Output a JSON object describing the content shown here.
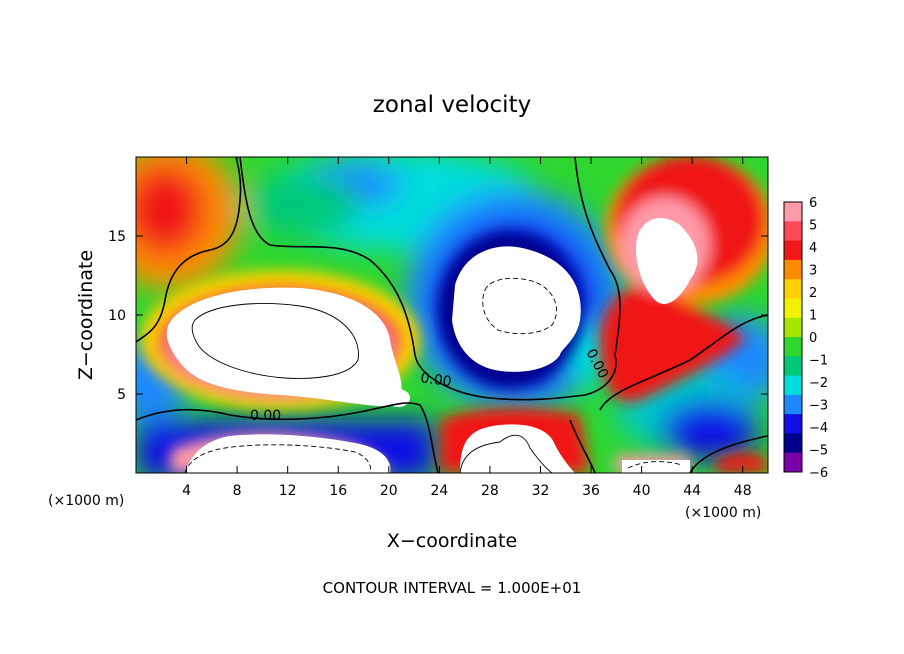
{
  "chart_data": {
    "type": "heatmap",
    "title": "zonal velocity",
    "xlabel": "X−coordinate",
    "ylabel": "Z−coordinate",
    "x_unit_left": "(×1000 m)",
    "x_unit_right": "(×1000 m)",
    "footer": "CONTOUR INTERVAL = 1.000E+01",
    "xlim": [
      0,
      50
    ],
    "ylim": [
      0,
      20
    ],
    "x_ticks": [
      4,
      8,
      12,
      16,
      20,
      24,
      28,
      32,
      36,
      40,
      44,
      48
    ],
    "x_tick_labels": [
      "4",
      "8",
      "12",
      "16",
      "20",
      "24",
      "28",
      "32",
      "36",
      "40",
      "44",
      "48"
    ],
    "y_ticks": [
      5,
      10,
      15
    ],
    "y_tick_labels": [
      "5",
      "10",
      "15"
    ],
    "colorbar": {
      "levels": [
        6,
        5,
        4,
        3,
        2,
        1,
        0,
        -1,
        -2,
        -3,
        -4,
        -5,
        -6
      ],
      "labels": [
        "6",
        "5",
        "4",
        "3",
        "2",
        "1",
        "0",
        "−1",
        "−2",
        "−3",
        "−4",
        "−5",
        "−6"
      ],
      "colors": [
        "#ff9aa8",
        "#ff4a5a",
        "#f01818",
        "#ff8c00",
        "#ffd000",
        "#f2f200",
        "#a8e600",
        "#2ed62e",
        "#00c878",
        "#00dcdc",
        "#1e88ff",
        "#1010e6",
        "#00008c",
        "#7a00a8"
      ]
    },
    "contour_labels": [
      "0.00",
      "0.00",
      "0.00"
    ]
  }
}
